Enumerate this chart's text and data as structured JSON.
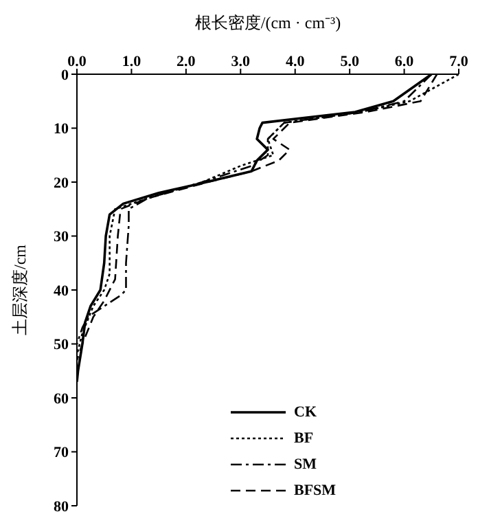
{
  "chart_data": {
    "type": "line",
    "xlabel": "根长密度/(cm · cm⁻³)",
    "ylabel": "土层深度/cm",
    "xlim": [
      0,
      7
    ],
    "xticks": [
      {
        "value": 0,
        "label": "0.0"
      },
      {
        "value": 1,
        "label": "1.0"
      },
      {
        "value": 2,
        "label": "2.0"
      },
      {
        "value": 3,
        "label": "3.0"
      },
      {
        "value": 4,
        "label": "4.0"
      },
      {
        "value": 5,
        "label": "5.0"
      },
      {
        "value": 6,
        "label": "6.0"
      },
      {
        "value": 7,
        "label": "7.0"
      }
    ],
    "ylim": [
      80,
      0
    ],
    "yticks": [
      0,
      10,
      20,
      30,
      40,
      50,
      60,
      70,
      80
    ],
    "grid": false,
    "legend": "bottom",
    "marker": "none",
    "series": [
      {
        "name": "CK",
        "color": "#000000",
        "line_style": "solid",
        "x": [
          6.5,
          5.8,
          5.1,
          3.4,
          3.35,
          3.3,
          3.5,
          3.3,
          3.2,
          2.2,
          1.5,
          0.85,
          0.6,
          0.53,
          0.5,
          0.43,
          0.25,
          0.15,
          0.1,
          0.02,
          0
        ],
        "values": [
          0,
          5,
          7,
          9,
          10,
          12,
          14,
          16,
          18,
          20.4,
          22,
          24,
          26,
          30,
          35,
          40,
          43,
          46,
          50,
          55,
          57
        ]
      },
      {
        "name": "BF",
        "color": "#000000",
        "line_style": "dotted",
        "x": [
          7.0,
          6.1,
          5.2,
          3.8,
          3.5,
          3.6,
          3.0,
          2.3,
          1.3,
          0.7,
          0.6,
          0.6,
          0.5,
          0.3,
          0.1,
          0
        ],
        "values": [
          0,
          5,
          7,
          9,
          12,
          15,
          17,
          20,
          23,
          25,
          30,
          37,
          40,
          43,
          48,
          52
        ]
      },
      {
        "name": "SM",
        "color": "#000000",
        "line_style": "dashdot",
        "x": [
          6.5,
          6.0,
          5.2,
          3.8,
          3.5,
          3.5,
          3.2,
          2.3,
          1.3,
          0.95,
          0.95,
          0.9,
          0.9,
          0.8,
          0.5,
          0.2,
          0.1,
          0
        ],
        "values": [
          0,
          5,
          7,
          9,
          12,
          15,
          17,
          20,
          23,
          25,
          28,
          35,
          40,
          41,
          43,
          45,
          47,
          50
        ]
      },
      {
        "name": "BFSM",
        "color": "#000000",
        "line_style": "dashed",
        "x": [
          6.6,
          6.3,
          5.3,
          3.9,
          3.6,
          3.9,
          3.7,
          3.2,
          2.4,
          1.3,
          0.8,
          0.75,
          0.7,
          0.5,
          0.3,
          0.1,
          0
        ],
        "values": [
          0,
          5,
          7,
          9,
          12,
          14,
          16,
          18,
          20,
          23,
          25,
          30,
          38,
          42,
          45,
          50,
          53
        ]
      }
    ]
  }
}
